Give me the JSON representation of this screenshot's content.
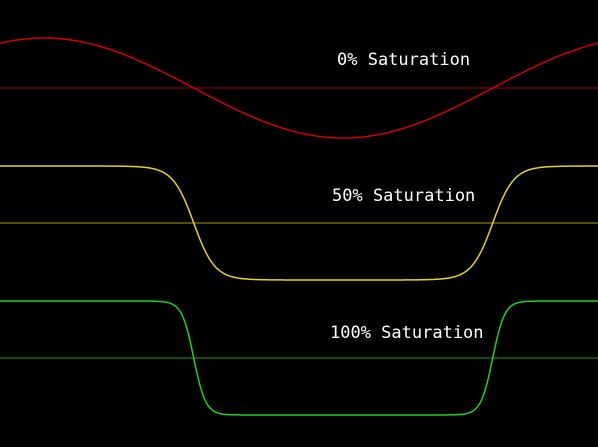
{
  "chart_data": [
    {
      "type": "line",
      "title": "0% Saturation",
      "saturation": 0,
      "color": "#d40000",
      "baseline_color": "#9a0000",
      "x_range": [
        0,
        1
      ],
      "y_range": [
        -1,
        1
      ],
      "function": "saturated sine, one full period across the width, phase starts below peak"
    },
    {
      "type": "line",
      "title": "50% Saturation",
      "saturation": 0.5,
      "color": "#e6d21e",
      "baseline_color": "#a89a10",
      "x_range": [
        0,
        1
      ],
      "y_range": [
        -1,
        1
      ],
      "function": "saturated sine, one full period across the width, phase starts below peak"
    },
    {
      "type": "line",
      "title": "100% Saturation",
      "saturation": 1,
      "color": "#1ed21e",
      "baseline_color": "#12a012",
      "x_range": [
        0,
        1
      ],
      "y_range": [
        -1,
        1
      ],
      "function": "saturated sine, one full period across the width, phase starts below peak"
    }
  ]
}
